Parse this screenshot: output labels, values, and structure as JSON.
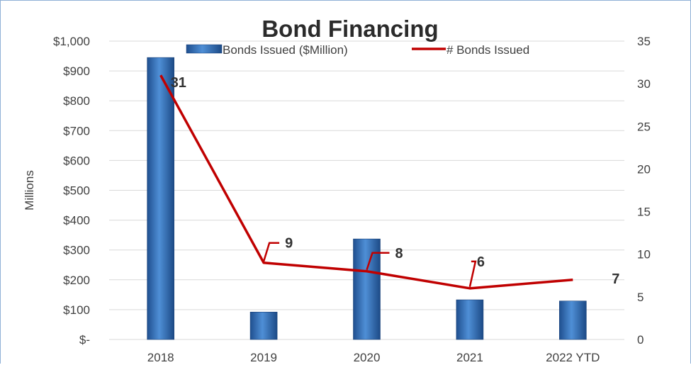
{
  "chart_data": {
    "type": "bar",
    "title": "Bond Financing",
    "categories": [
      "2018",
      "2019",
      "2020",
      "2021",
      "2022 YTD"
    ],
    "ylabel": "Millions",
    "ylim": [
      0,
      1000
    ],
    "y2lim": [
      0,
      35
    ],
    "y_ticks": [
      {
        "value": 0,
        "label": "$-"
      },
      {
        "value": 100,
        "label": "$100"
      },
      {
        "value": 200,
        "label": "$200"
      },
      {
        "value": 300,
        "label": "$300"
      },
      {
        "value": 400,
        "label": "$400"
      },
      {
        "value": 500,
        "label": "$500"
      },
      {
        "value": 600,
        "label": "$600"
      },
      {
        "value": 700,
        "label": "$700"
      },
      {
        "value": 800,
        "label": "$800"
      },
      {
        "value": 900,
        "label": "$900"
      },
      {
        "value": 1000,
        "label": "$1,000"
      }
    ],
    "y2_ticks": [
      {
        "value": 0,
        "label": "0"
      },
      {
        "value": 5,
        "label": "5"
      },
      {
        "value": 10,
        "label": "10"
      },
      {
        "value": 15,
        "label": "15"
      },
      {
        "value": 20,
        "label": "20"
      },
      {
        "value": 25,
        "label": "25"
      },
      {
        "value": 30,
        "label": "30"
      },
      {
        "value": 35,
        "label": "35"
      }
    ],
    "grid": true,
    "legend_position": "top",
    "series": [
      {
        "name": "Bonds Issued ($Million)",
        "type": "bar",
        "axis": "left",
        "color": "#2e6bb5",
        "values": [
          945,
          92,
          337,
          133,
          129
        ]
      },
      {
        "name": "# Bonds Issued",
        "type": "line",
        "axis": "right",
        "color": "#c00000",
        "values": [
          31,
          9,
          8,
          6,
          7
        ],
        "data_labels": [
          "31",
          "9",
          "8",
          "6",
          "7"
        ]
      }
    ]
  }
}
